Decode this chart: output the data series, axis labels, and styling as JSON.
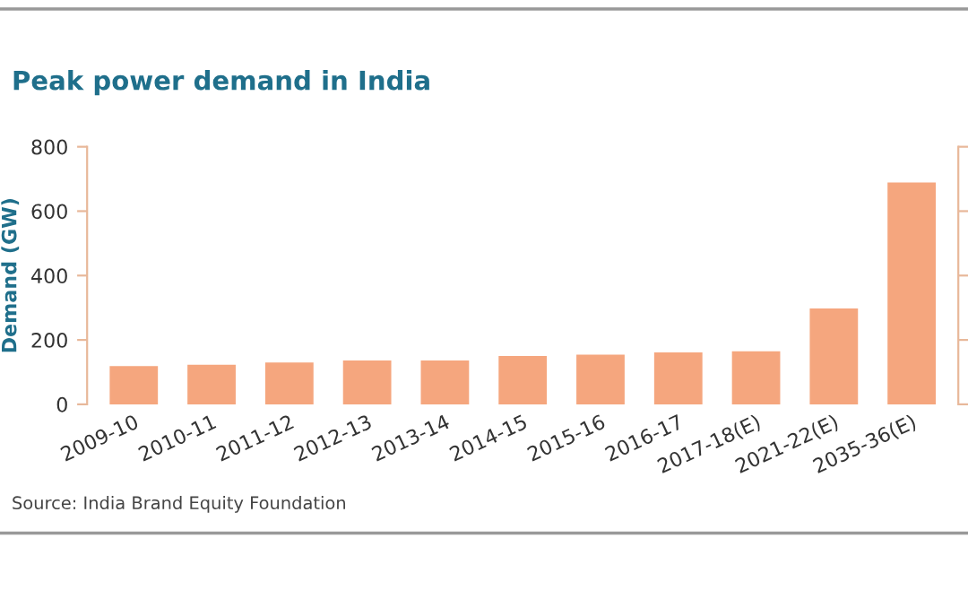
{
  "chart_data": {
    "type": "bar",
    "title": "Peak power demand in India",
    "ylabel": "Demand (GW)",
    "categories": [
      "2009-10",
      "2010-11",
      "2011-12",
      "2012-13",
      "2013-14",
      "2014-15",
      "2015-16",
      "2016-17",
      "2017-18(E)",
      "2021-22(E)",
      "2035-36(E)"
    ],
    "values": [
      119,
      123,
      130,
      136,
      136,
      150,
      154,
      161,
      165,
      298,
      689
    ],
    "color": "#f5a67e",
    "ylim": [
      0,
      800
    ],
    "yticks": [
      0,
      200,
      400,
      600,
      800
    ],
    "grid": false,
    "legend": false,
    "annotations": [
      "Source: India Brand Equity Foundation"
    ]
  }
}
